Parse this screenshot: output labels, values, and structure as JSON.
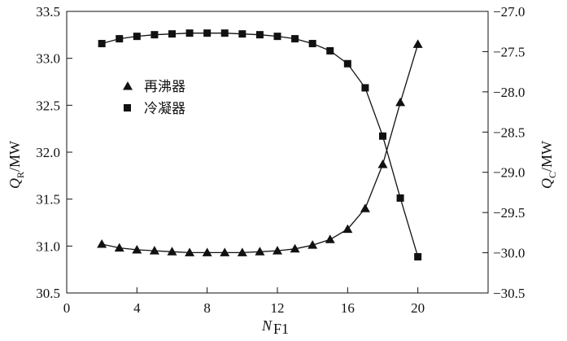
{
  "chart_data": {
    "type": "line",
    "title": "",
    "xlabel": {
      "main": "N",
      "sub": "F1"
    },
    "ylabel_left": {
      "main": "Q",
      "sub": "R",
      "unit": "/MW"
    },
    "ylabel_right": {
      "main": "Q",
      "sub": "C",
      "unit": "/MW"
    },
    "xlim": [
      0,
      24
    ],
    "ylim_left": [
      30.5,
      33.5
    ],
    "ylim_right": [
      -30.5,
      -27.0
    ],
    "x_ticks": [
      0,
      4,
      8,
      12,
      16,
      20
    ],
    "x_tick_labels": [
      "0",
      "4",
      "8",
      "12",
      "16",
      "20"
    ],
    "y_left_ticks": [
      30.5,
      31.0,
      31.5,
      32.0,
      32.5,
      33.0,
      33.5
    ],
    "y_left_tick_labels": [
      "30.5",
      "31.0",
      "31.5",
      "32.0",
      "32.5",
      "33.0",
      "33.5"
    ],
    "y_right_ticks": [
      -30.5,
      -30.0,
      -29.5,
      -29.0,
      -28.5,
      -28.0,
      -27.5,
      -27.0
    ],
    "y_right_tick_labels": [
      "−30.5",
      "−30.0",
      "−29.5",
      "−29.0",
      "−28.5",
      "−28.0",
      "−27.5",
      "−27.0"
    ],
    "grid": false,
    "legend_position": "upper-left",
    "series": [
      {
        "name": "再沸器",
        "marker": "triangle",
        "axis": "left",
        "x": [
          2,
          3,
          4,
          5,
          6,
          7,
          8,
          9,
          10,
          11,
          12,
          13,
          14,
          15,
          16,
          17,
          18,
          19,
          20
        ],
        "values": [
          31.02,
          30.98,
          30.96,
          30.95,
          30.94,
          30.93,
          30.93,
          30.93,
          30.93,
          30.94,
          30.95,
          30.97,
          31.01,
          31.07,
          31.18,
          31.4,
          31.87,
          32.53,
          33.15
        ]
      },
      {
        "name": "冷凝器",
        "marker": "square",
        "axis": "right",
        "x": [
          2,
          3,
          4,
          5,
          6,
          7,
          8,
          9,
          10,
          11,
          12,
          13,
          14,
          15,
          16,
          17,
          18,
          19,
          20
        ],
        "values": [
          -27.4,
          -27.34,
          -27.31,
          -27.29,
          -27.28,
          -27.27,
          -27.27,
          -27.27,
          -27.28,
          -27.29,
          -27.31,
          -27.34,
          -27.4,
          -27.49,
          -27.65,
          -27.95,
          -28.55,
          -29.32,
          -30.05
        ]
      }
    ]
  }
}
